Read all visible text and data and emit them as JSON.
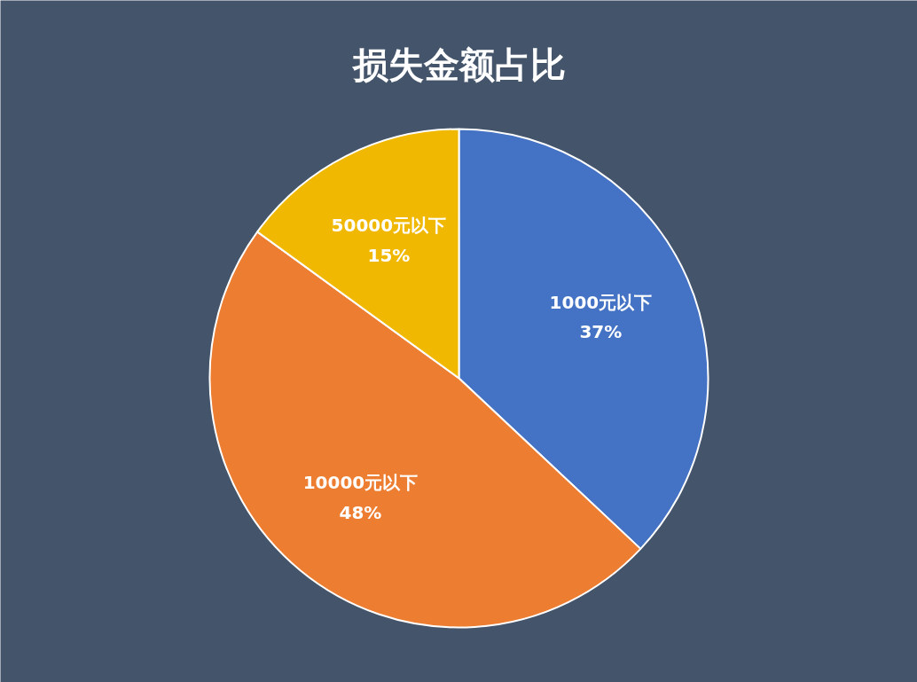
{
  "chart_data": {
    "type": "pie",
    "title": "损失金额占比",
    "categories": [
      "1000元以下",
      "10000元以下",
      "50000元以下"
    ],
    "values": [
      37,
      48,
      15
    ],
    "value_labels": [
      "37%",
      "48%",
      "15%"
    ],
    "colors": [
      "#4472c4",
      "#ed7d31",
      "#f0b800"
    ]
  }
}
